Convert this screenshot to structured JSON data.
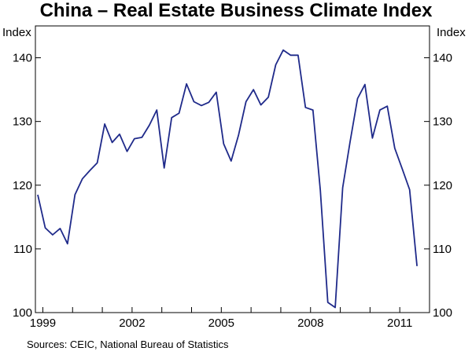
{
  "chart_data": {
    "type": "line",
    "title": "China – Real Estate Business Climate Index",
    "ylabel_left": "Index",
    "ylabel_right": "Index",
    "ylim": [
      100,
      145
    ],
    "yticks": [
      100,
      110,
      120,
      130,
      140
    ],
    "xlim": [
      1998.75,
      2012.0
    ],
    "xticks": [
      {
        "value": 1999.0,
        "label": "1999"
      },
      {
        "value": 2002.0,
        "label": "2002"
      },
      {
        "value": 2005.0,
        "label": "2005"
      },
      {
        "value": 2008.0,
        "label": "2008"
      },
      {
        "value": 2011.0,
        "label": "2011"
      }
    ],
    "xminor": [
      1999.0,
      2000.0,
      2001.0,
      2002.0,
      2003.0,
      2004.0,
      2005.0,
      2006.0,
      2007.0,
      2008.0,
      2009.0,
      2010.0,
      2011.0,
      2012.0
    ],
    "grid": false,
    "series": [
      {
        "name": "Real Estate Business Climate Index",
        "color": "#1f2a8a",
        "x": [
          1998.83,
          1999.08,
          1999.33,
          1999.58,
          1999.83,
          2000.08,
          2000.33,
          2000.58,
          2000.83,
          2001.08,
          2001.33,
          2001.58,
          2001.83,
          2002.08,
          2002.33,
          2002.58,
          2002.83,
          2003.08,
          2003.33,
          2003.58,
          2003.83,
          2004.08,
          2004.33,
          2004.58,
          2004.83,
          2005.08,
          2005.33,
          2005.58,
          2005.83,
          2006.08,
          2006.33,
          2006.58,
          2006.83,
          2007.08,
          2007.33,
          2007.58,
          2007.83,
          2008.08,
          2008.33,
          2008.58,
          2008.83,
          2009.08,
          2009.33,
          2009.58,
          2009.83,
          2010.08,
          2010.33,
          2010.58,
          2010.83,
          2011.08,
          2011.33
        ],
        "values": [
          118.5,
          113.3,
          112.2,
          113.2,
          110.8,
          118.5,
          121.0,
          122.3,
          123.5,
          129.6,
          126.7,
          128.0,
          125.3,
          127.3,
          127.5,
          129.4,
          131.8,
          122.7,
          130.6,
          131.3,
          135.9,
          133.1,
          132.5,
          133.0,
          134.6,
          126.5,
          123.8,
          127.9,
          133.1,
          135.0,
          132.6,
          133.8,
          138.9,
          141.2,
          140.4,
          140.4,
          132.2,
          131.8,
          119.2,
          101.6,
          100.8,
          119.6,
          126.8,
          133.6,
          135.8,
          127.4,
          131.8,
          132.4,
          125.8,
          122.6,
          119.3
        ]
      }
    ],
    "last_point": {
      "x": 2011.58,
      "value": 107.3
    }
  },
  "source_note": "Sources: CEIC, National Bureau of Statistics"
}
